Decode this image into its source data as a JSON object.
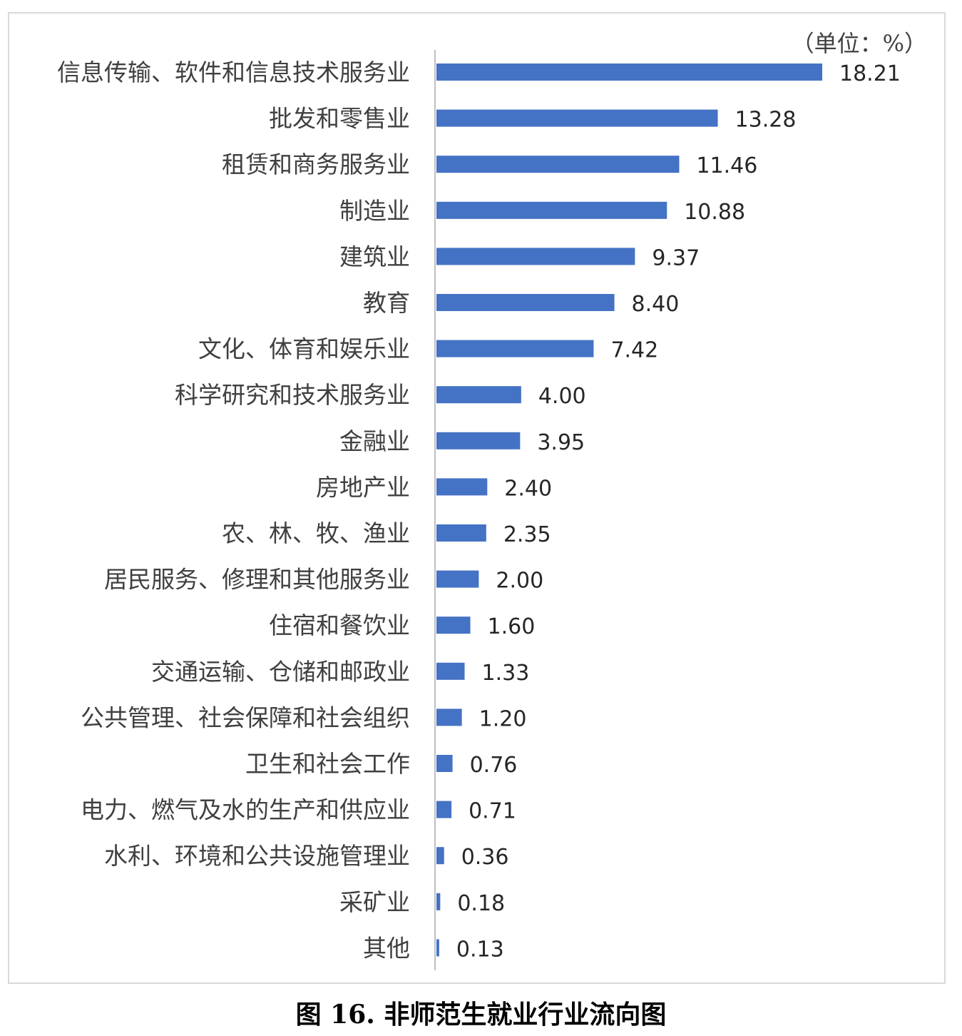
{
  "caption": "图 16. 非师范生就业行业流向图",
  "chart_data": {
    "type": "bar",
    "orientation": "horizontal",
    "unit_label": "（单位：%）",
    "categories": [
      "信息传输、软件和信息技术服务业",
      "批发和零售业",
      "租赁和商务服务业",
      "制造业",
      "建筑业",
      "教育",
      "文化、体育和娱乐业",
      "科学研究和技术服务业",
      "金融业",
      "房地产业",
      "农、林、牧、渔业",
      "居民服务、修理和其他服务业",
      "住宿和餐饮业",
      "交通运输、仓储和邮政业",
      "公共管理、社会保障和社会组织",
      "卫生和社会工作",
      "电力、燃气及水的生产和供应业",
      "水利、环境和公共设施管理业",
      "采矿业",
      "其他"
    ],
    "values": [
      18.21,
      13.28,
      11.46,
      10.88,
      9.37,
      8.4,
      7.42,
      4.0,
      3.95,
      2.4,
      2.35,
      2.0,
      1.6,
      1.33,
      1.2,
      0.76,
      0.71,
      0.36,
      0.18,
      0.13
    ],
    "value_labels": [
      "18.21",
      "13.28",
      "11.46",
      "10.88",
      "9.37",
      "8.40",
      "7.42",
      "4.00",
      "3.95",
      "2.40",
      "2.35",
      "2.00",
      "1.60",
      "1.33",
      "1.20",
      "0.76",
      "0.71",
      "0.36",
      "0.18",
      "0.13"
    ],
    "xlim": [
      0,
      20
    ],
    "bar_color": "#4472c4",
    "axis_color": "#bfbfbf",
    "grid": false,
    "legend": "none"
  }
}
